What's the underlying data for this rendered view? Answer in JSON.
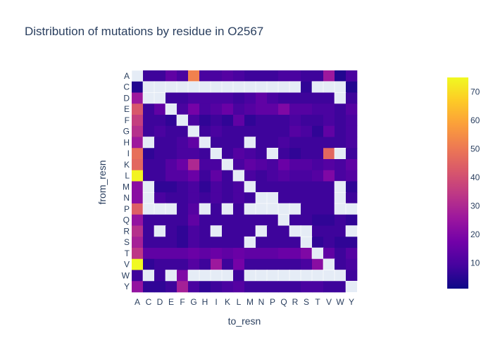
{
  "chart_data": {
    "type": "heatmap",
    "title": "Distribution of mutations by residue in O2567",
    "xlabel": "to_resn",
    "ylabel": "from_resn",
    "categories_x": [
      "A",
      "C",
      "D",
      "E",
      "F",
      "G",
      "H",
      "I",
      "K",
      "L",
      "M",
      "N",
      "P",
      "Q",
      "R",
      "S",
      "T",
      "V",
      "W",
      "Y"
    ],
    "categories_y": [
      "A",
      "C",
      "D",
      "E",
      "F",
      "G",
      "H",
      "I",
      "K",
      "L",
      "M",
      "N",
      "P",
      "Q",
      "R",
      "S",
      "T",
      "V",
      "W",
      "Y"
    ],
    "colorscale": "plasma",
    "zmin": 1,
    "zmax": 75,
    "colorbar_ticks": [
      10,
      20,
      30,
      40,
      50,
      60,
      70
    ],
    "grid": false,
    "values": [
      [
        null,
        8,
        8,
        14,
        10,
        52,
        10,
        10,
        12,
        10,
        8,
        8,
        8,
        10,
        10,
        8,
        8,
        26,
        4,
        10
      ],
      [
        4,
        null,
        null,
        null,
        null,
        null,
        null,
        null,
        null,
        null,
        null,
        null,
        null,
        null,
        null,
        6,
        null,
        null,
        null,
        4
      ],
      [
        26,
        null,
        null,
        8,
        8,
        10,
        10,
        10,
        10,
        8,
        10,
        14,
        10,
        8,
        8,
        8,
        8,
        8,
        null,
        8
      ],
      [
        42,
        8,
        14,
        null,
        10,
        18,
        10,
        12,
        16,
        10,
        12,
        14,
        14,
        20,
        12,
        12,
        10,
        10,
        8,
        12
      ],
      [
        36,
        8,
        8,
        6,
        null,
        10,
        6,
        8,
        6,
        14,
        6,
        8,
        8,
        8,
        10,
        8,
        8,
        10,
        8,
        10
      ],
      [
        32,
        8,
        10,
        8,
        8,
        null,
        8,
        10,
        8,
        8,
        8,
        8,
        8,
        8,
        12,
        10,
        6,
        14,
        8,
        10
      ],
      [
        26,
        null,
        8,
        8,
        10,
        14,
        null,
        8,
        8,
        8,
        null,
        8,
        8,
        10,
        8,
        8,
        8,
        8,
        8,
        10
      ],
      [
        48,
        6,
        8,
        8,
        10,
        10,
        8,
        null,
        8,
        12,
        10,
        8,
        null,
        8,
        6,
        8,
        8,
        46,
        null,
        8
      ],
      [
        46,
        8,
        8,
        12,
        16,
        30,
        10,
        10,
        null,
        10,
        14,
        12,
        10,
        16,
        12,
        12,
        10,
        12,
        10,
        14
      ],
      [
        74,
        8,
        8,
        12,
        12,
        16,
        8,
        14,
        8,
        null,
        10,
        8,
        10,
        12,
        10,
        10,
        12,
        20,
        10,
        12
      ],
      [
        22,
        null,
        6,
        6,
        8,
        10,
        6,
        10,
        8,
        10,
        null,
        8,
        8,
        8,
        8,
        8,
        8,
        8,
        null,
        6
      ],
      [
        22,
        null,
        10,
        8,
        8,
        10,
        8,
        10,
        8,
        10,
        8,
        null,
        null,
        8,
        8,
        8,
        8,
        8,
        null,
        8
      ],
      [
        44,
        null,
        null,
        null,
        8,
        12,
        null,
        8,
        null,
        8,
        null,
        null,
        null,
        null,
        null,
        8,
        8,
        8,
        null,
        null
      ],
      [
        24,
        8,
        8,
        8,
        8,
        14,
        8,
        8,
        8,
        8,
        8,
        8,
        8,
        null,
        8,
        8,
        6,
        6,
        8,
        6
      ],
      [
        32,
        8,
        null,
        8,
        6,
        10,
        8,
        null,
        8,
        8,
        8,
        null,
        8,
        8,
        null,
        null,
        8,
        8,
        8,
        null
      ],
      [
        28,
        8,
        8,
        8,
        6,
        10,
        8,
        8,
        8,
        8,
        null,
        8,
        8,
        8,
        8,
        null,
        6,
        8,
        6,
        6
      ],
      [
        34,
        14,
        14,
        14,
        14,
        16,
        14,
        16,
        14,
        16,
        14,
        14,
        14,
        16,
        16,
        20,
        null,
        14,
        8,
        12
      ],
      [
        76,
        6,
        8,
        8,
        8,
        12,
        8,
        26,
        8,
        18,
        8,
        8,
        8,
        8,
        8,
        10,
        22,
        null,
        8,
        10
      ],
      [
        8,
        null,
        8,
        null,
        20,
        null,
        null,
        null,
        null,
        8,
        null,
        null,
        null,
        null,
        null,
        null,
        null,
        null,
        null,
        8
      ],
      [
        24,
        6,
        6,
        8,
        28,
        10,
        6,
        8,
        10,
        12,
        8,
        8,
        8,
        8,
        8,
        10,
        10,
        8,
        8,
        null
      ]
    ]
  }
}
